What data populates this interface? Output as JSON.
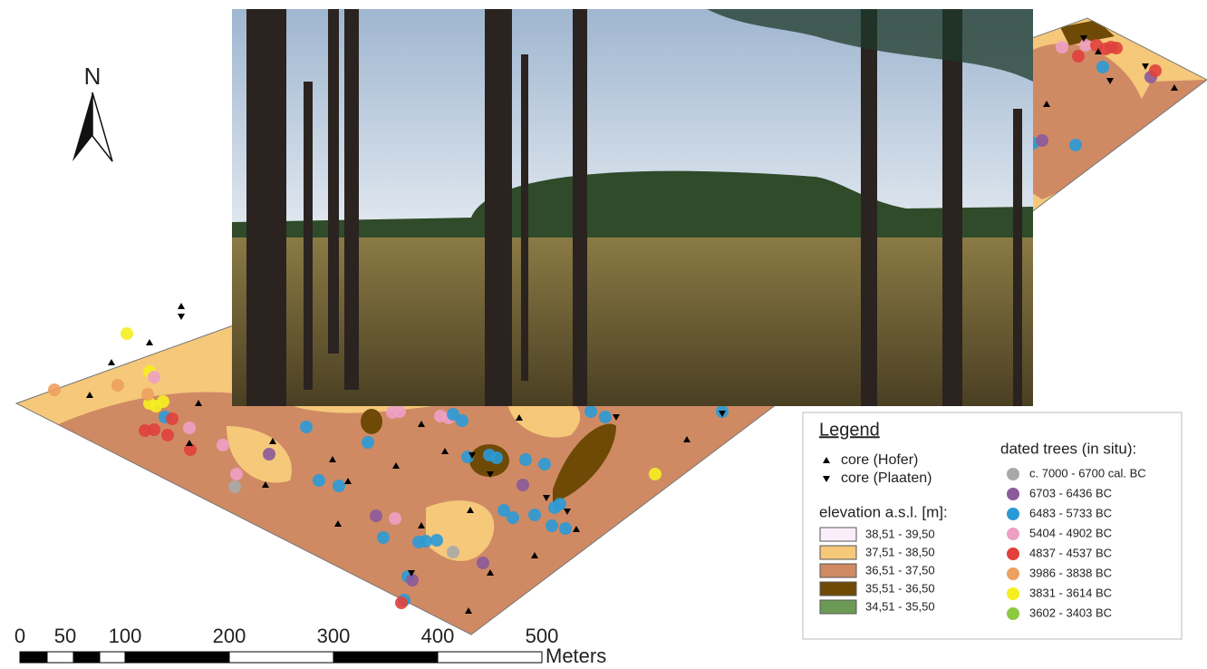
{
  "north_arrow": {
    "label": "N"
  },
  "legend": {
    "title": "Legend",
    "cores": [
      {
        "label": "core (Hofer)",
        "symbol": "up"
      },
      {
        "label": "core (Plaaten)",
        "symbol": "down"
      }
    ],
    "elevation": {
      "title": "elevation a.s.l. [m]:",
      "classes": [
        {
          "label": "38,51 - 39,50",
          "color": "#fbeefa"
        },
        {
          "label": "37,51 - 38,50",
          "color": "#f5c87a"
        },
        {
          "label": "36,51 - 37,50",
          "color": "#cf8a64"
        },
        {
          "label": "35,51 - 36,50",
          "color": "#6e4a06"
        },
        {
          "label": "34,51 - 35,50",
          "color": "#6b9a55"
        }
      ]
    },
    "dated_trees": {
      "title": "dated trees (in situ):",
      "classes": [
        {
          "label": "c. 7000 - 6700 cal. BC",
          "color": "#a8a8a8"
        },
        {
          "label": "6703 - 6436  BC",
          "color": "#8a5a9a"
        },
        {
          "label": "6483 - 5733  BC",
          "color": "#2a9ad6"
        },
        {
          "label": "5404 - 4902  BC",
          "color": "#eda0c4"
        },
        {
          "label": "4837 - 4537  BC",
          "color": "#e0403c"
        },
        {
          "label": "3986 - 3838  BC",
          "color": "#eea05e"
        },
        {
          "label": "3831 - 3614  BC",
          "color": "#f5ee20"
        },
        {
          "label": "3602 - 3403  BC",
          "color": "#8cc840"
        }
      ]
    }
  },
  "scale_bar": {
    "labels": [
      "0",
      "50",
      "100",
      "200",
      "300",
      "400",
      "500"
    ],
    "unit": "Meters"
  }
}
